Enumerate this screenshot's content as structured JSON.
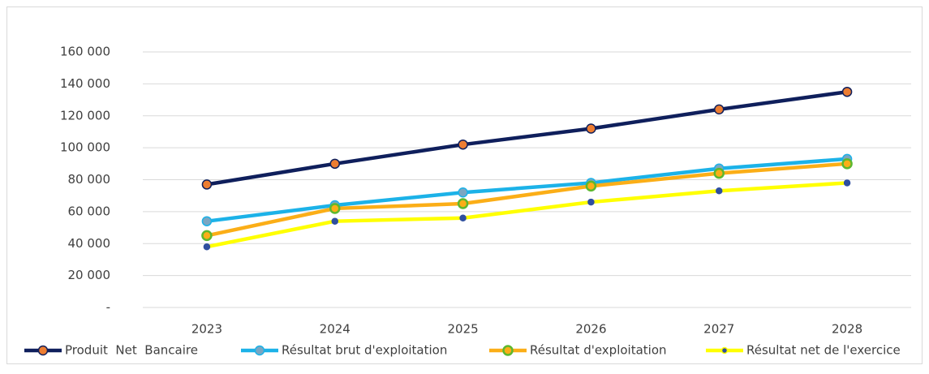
{
  "chart_data": {
    "type": "line",
    "categories": [
      "2023",
      "2024",
      "2025",
      "2026",
      "2027",
      "2028"
    ],
    "series": [
      {
        "name": "Produit  Net  Bancaire",
        "color": "#0f1f5c",
        "marker_color": "#ed7d31",
        "values": [
          77000,
          90000,
          102000,
          112000,
          124000,
          135000
        ]
      },
      {
        "name": "Résultat brut d'exploitation",
        "color": "#1cb2e8",
        "marker_color": "#7aa6c2",
        "values": [
          54000,
          64000,
          72000,
          78000,
          87000,
          93000
        ]
      },
      {
        "name": "Résultat d'exploitation",
        "color": "#fbae17",
        "marker_color": "#5db82e",
        "values": [
          45000,
          62000,
          65000,
          76000,
          84000,
          90000
        ]
      },
      {
        "name": "Résultat net de l'exercice",
        "color": "#ffff00",
        "marker_color": "#2f4f9f",
        "values": [
          38000,
          54000,
          56000,
          66000,
          73000,
          78000
        ]
      }
    ],
    "ylim": [
      0,
      160000
    ],
    "yticks": [
      {
        "value": 0,
        "label": "-"
      },
      {
        "value": 20000,
        "label": "20 000"
      },
      {
        "value": 40000,
        "label": "40 000"
      },
      {
        "value": 60000,
        "label": "60 000"
      },
      {
        "value": 80000,
        "label": "80 000"
      },
      {
        "value": 100000,
        "label": "100 000"
      },
      {
        "value": 120000,
        "label": "120 000"
      },
      {
        "value": 140000,
        "label": "140 000"
      },
      {
        "value": 160000,
        "label": "160 000"
      }
    ],
    "grid": true,
    "legend": "bottom"
  }
}
